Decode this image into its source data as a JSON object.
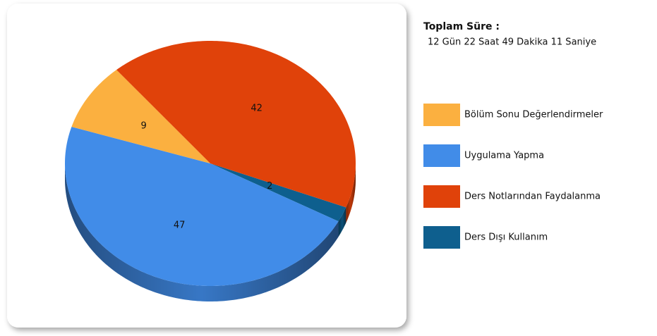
{
  "chart_data": {
    "type": "pie",
    "title": "Toplam Süre :",
    "subtitle": "12 Gün 22 Saat 49 Dakika 11 Saniye",
    "categories": [
      "Bölüm Sonu Değerlendirmeler",
      "Uygulama Yapma",
      "Ders Notlarından Faydalanma",
      "Ders Dışı Kullanım"
    ],
    "values": [
      9,
      47,
      42,
      2
    ],
    "colors": [
      "#fbb040",
      "#418ce8",
      "#e0420a",
      "#0e5f8e"
    ],
    "legend": "right"
  }
}
